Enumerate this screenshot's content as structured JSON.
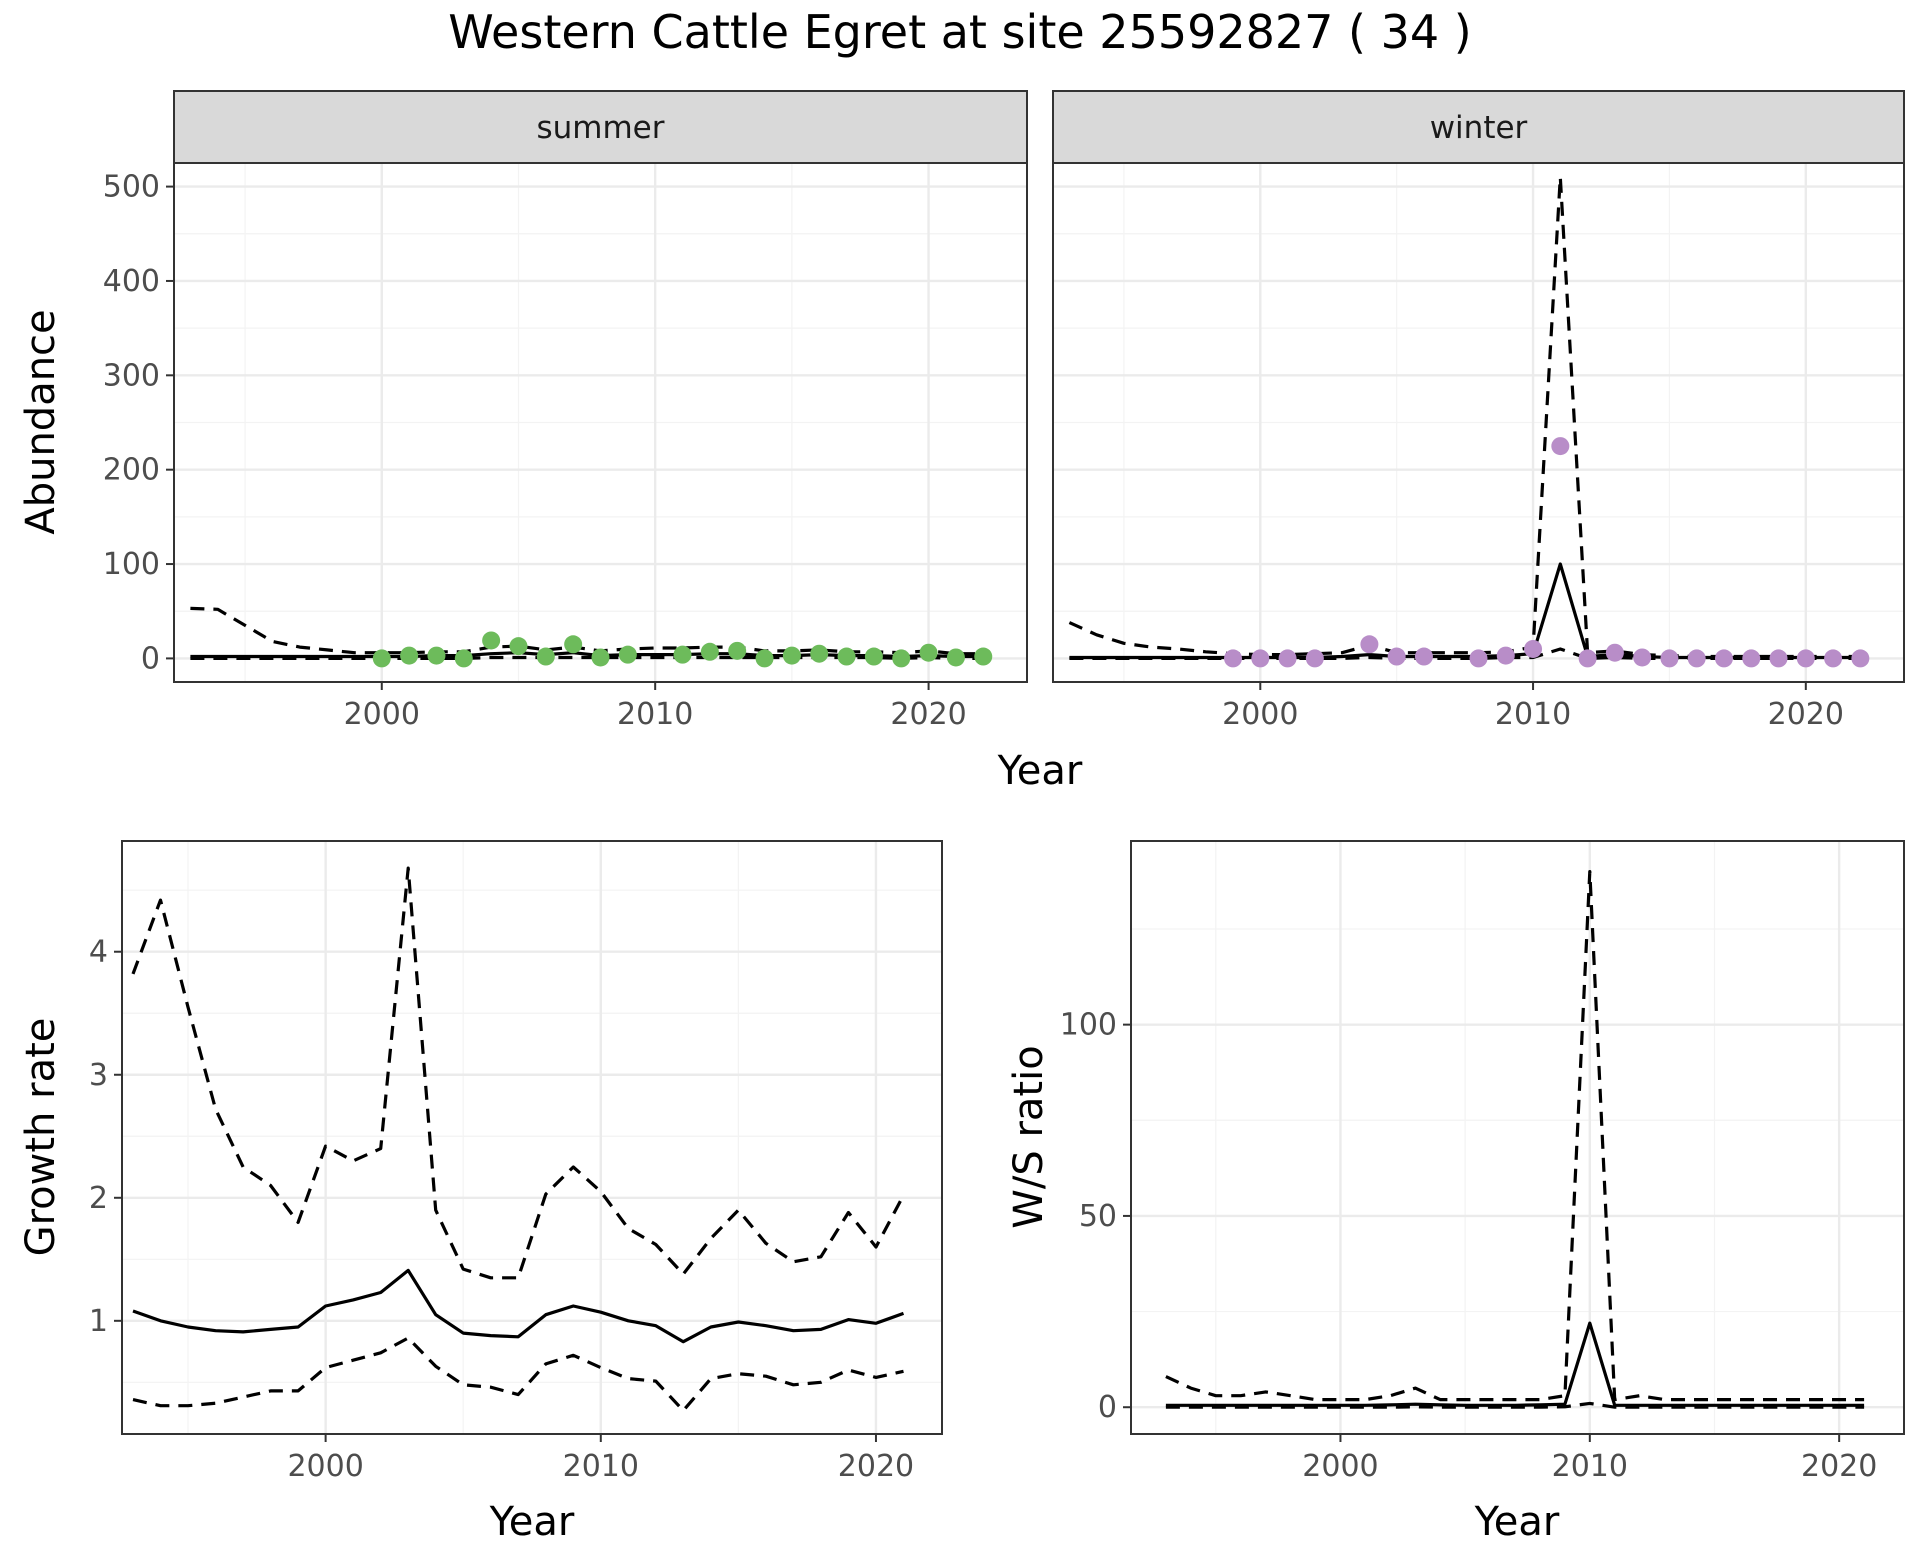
{
  "title": "Western Cattle Egret at site 25592827 ( 34 )",
  "colors": {
    "summer_points": "#6dbb5b",
    "winter_points": "#b88dc8",
    "lines": "#000000"
  },
  "chart_data": [
    {
      "id": "abundance-summer",
      "type": "line",
      "strip": "summer",
      "ylabel": "Abundance",
      "xlim": [
        1992.4,
        2023.6
      ],
      "ylim": [
        -25,
        525
      ],
      "x_ticks": [
        2000,
        2010,
        2020
      ],
      "y_ticks": [
        0,
        100,
        200,
        300,
        400,
        500
      ],
      "lines": [
        {
          "role": "estimate",
          "x": [
            1993,
            1994,
            1995,
            1996,
            1997,
            1998,
            1999,
            2000,
            2001,
            2002,
            2003,
            2004,
            2005,
            2006,
            2007,
            2008,
            2009,
            2010,
            2011,
            2012,
            2013,
            2014,
            2015,
            2016,
            2017,
            2018,
            2019,
            2020,
            2021,
            2022
          ],
          "y": [
            2,
            2,
            2,
            2,
            2,
            2,
            2,
            2,
            2,
            3,
            3,
            5,
            6,
            4,
            6,
            3,
            4,
            4,
            4,
            5,
            5,
            3,
            3,
            4,
            3,
            3,
            2,
            3,
            2,
            2
          ]
        },
        {
          "role": "upper",
          "x": [
            1993,
            1994,
            1995,
            1996,
            1997,
            1998,
            1999,
            2000,
            2001,
            2002,
            2003,
            2004,
            2005,
            2006,
            2007,
            2008,
            2009,
            2010,
            2011,
            2012,
            2013,
            2014,
            2015,
            2016,
            2017,
            2018,
            2019,
            2020,
            2021,
            2022
          ],
          "y": [
            53,
            52,
            35,
            18,
            12,
            9,
            6,
            6,
            6,
            7,
            7,
            12,
            13,
            9,
            12,
            8,
            10,
            11,
            11,
            12,
            12,
            8,
            8,
            9,
            7,
            7,
            6,
            8,
            5,
            5
          ]
        },
        {
          "role": "lower",
          "x": [
            1993,
            1994,
            1995,
            1996,
            1997,
            1998,
            1999,
            2000,
            2001,
            2002,
            2003,
            2004,
            2005,
            2006,
            2007,
            2008,
            2009,
            2010,
            2011,
            2012,
            2013,
            2014,
            2015,
            2016,
            2017,
            2018,
            2019,
            2020,
            2021,
            2022
          ],
          "y": [
            0,
            0,
            0,
            0,
            0,
            0,
            0,
            0,
            0,
            0,
            0,
            1,
            1,
            1,
            1,
            1,
            1,
            1,
            1,
            1,
            1,
            1,
            1,
            1,
            1,
            1,
            0,
            1,
            0,
            0
          ]
        }
      ],
      "points": {
        "x": [
          2000,
          2001,
          2002,
          2003,
          2004,
          2005,
          2006,
          2007,
          2008,
          2009,
          2011,
          2012,
          2013,
          2014,
          2015,
          2016,
          2017,
          2018,
          2019,
          2020,
          2021,
          2022
        ],
        "y": [
          0,
          3,
          3,
          0,
          19,
          13,
          2,
          15,
          1,
          4,
          4,
          7,
          8,
          0,
          3,
          5,
          2,
          2,
          0,
          6,
          1,
          2
        ]
      }
    },
    {
      "id": "abundance-winter",
      "type": "line",
      "strip": "winter",
      "ylabel": "",
      "xlim": [
        1992.4,
        2023.6
      ],
      "ylim": [
        -25,
        525
      ],
      "x_ticks": [
        2000,
        2010,
        2020
      ],
      "y_ticks": [
        0,
        100,
        200,
        300,
        400,
        500
      ],
      "lines": [
        {
          "role": "estimate",
          "x": [
            1993,
            1994,
            1995,
            1996,
            1997,
            1998,
            1999,
            2000,
            2001,
            2002,
            2003,
            2004,
            2005,
            2006,
            2007,
            2008,
            2009,
            2010,
            2011,
            2012,
            2013,
            2014,
            2015,
            2016,
            2017,
            2018,
            2019,
            2020,
            2021,
            2022
          ],
          "y": [
            1,
            1,
            1,
            1,
            1,
            1,
            1,
            1,
            1,
            1,
            2,
            4,
            2,
            2,
            2,
            2,
            3,
            5,
            100,
            2,
            4,
            2,
            1,
            1,
            1,
            1,
            1,
            1,
            1,
            1
          ]
        },
        {
          "role": "upper",
          "x": [
            1993,
            1994,
            1995,
            1996,
            1997,
            1998,
            1999,
            2000,
            2001,
            2002,
            2003,
            2004,
            2005,
            2006,
            2007,
            2008,
            2009,
            2010,
            2011,
            2012,
            2013,
            2014,
            2015,
            2016,
            2017,
            2018,
            2019,
            2020,
            2021,
            2022
          ],
          "y": [
            38,
            25,
            16,
            12,
            10,
            7,
            5,
            4,
            4,
            5,
            6,
            14,
            6,
            6,
            6,
            6,
            7,
            12,
            510,
            6,
            8,
            4,
            3,
            2,
            2,
            2,
            2,
            2,
            2,
            2
          ]
        },
        {
          "role": "lower",
          "x": [
            1993,
            1994,
            1995,
            1996,
            1997,
            1998,
            1999,
            2000,
            2001,
            2002,
            2003,
            2004,
            2005,
            2006,
            2007,
            2008,
            2009,
            2010,
            2011,
            2012,
            2013,
            2014,
            2015,
            2016,
            2017,
            2018,
            2019,
            2020,
            2021,
            2022
          ],
          "y": [
            0,
            0,
            0,
            0,
            0,
            0,
            0,
            0,
            0,
            0,
            0,
            1,
            0,
            0,
            0,
            0,
            1,
            1,
            10,
            0,
            1,
            0,
            0,
            0,
            0,
            0,
            0,
            0,
            0,
            0
          ]
        }
      ],
      "points": {
        "x": [
          1999,
          2000,
          2001,
          2002,
          2004,
          2005,
          2006,
          2008,
          2009,
          2010,
          2011,
          2012,
          2013,
          2014,
          2015,
          2016,
          2017,
          2018,
          2019,
          2020,
          2021,
          2022
        ],
        "y": [
          0,
          0,
          0,
          0,
          15,
          2,
          2,
          0,
          3,
          10,
          225,
          0,
          6,
          1,
          0,
          0,
          0,
          0,
          0,
          0,
          0,
          0
        ]
      }
    },
    {
      "id": "growth-rate",
      "type": "line",
      "xlabel": "Year",
      "ylabel": "Growth rate",
      "xlim": [
        1992.6,
        2022.4
      ],
      "ylim": [
        0.08,
        4.9
      ],
      "x_ticks": [
        2000,
        2010,
        2020
      ],
      "y_ticks": [
        1,
        2,
        3,
        4
      ],
      "lines": [
        {
          "role": "estimate",
          "x": [
            1993,
            1994,
            1995,
            1996,
            1997,
            1998,
            1999,
            2000,
            2001,
            2002,
            2003,
            2004,
            2005,
            2006,
            2007,
            2008,
            2009,
            2010,
            2011,
            2012,
            2013,
            2014,
            2015,
            2016,
            2017,
            2018,
            2019,
            2020,
            2021
          ],
          "y": [
            1.08,
            1.0,
            0.95,
            0.92,
            0.91,
            0.93,
            0.95,
            1.12,
            1.17,
            1.23,
            1.41,
            1.05,
            0.9,
            0.88,
            0.87,
            1.05,
            1.12,
            1.07,
            1.0,
            0.96,
            0.83,
            0.95,
            0.99,
            0.96,
            0.92,
            0.93,
            1.01,
            0.98,
            1.06
          ]
        },
        {
          "role": "upper",
          "x": [
            1993,
            1994,
            1995,
            1996,
            1997,
            1998,
            1999,
            2000,
            2001,
            2002,
            2003,
            2004,
            2005,
            2006,
            2007,
            2008,
            2009,
            2010,
            2011,
            2012,
            2013,
            2014,
            2015,
            2016,
            2017,
            2018,
            2019,
            2020,
            2021
          ],
          "y": [
            3.82,
            4.42,
            3.55,
            2.72,
            2.25,
            2.1,
            1.8,
            2.42,
            2.3,
            2.4,
            4.68,
            1.9,
            1.42,
            1.35,
            1.35,
            2.03,
            2.25,
            2.05,
            1.75,
            1.62,
            1.38,
            1.67,
            1.9,
            1.63,
            1.48,
            1.52,
            1.88,
            1.6,
            2.02
          ]
        },
        {
          "role": "lower",
          "x": [
            1993,
            1994,
            1995,
            1996,
            1997,
            1998,
            1999,
            2000,
            2001,
            2002,
            2003,
            2004,
            2005,
            2006,
            2007,
            2008,
            2009,
            2010,
            2011,
            2012,
            2013,
            2014,
            2015,
            2016,
            2017,
            2018,
            2019,
            2020,
            2021
          ],
          "y": [
            0.36,
            0.31,
            0.31,
            0.33,
            0.38,
            0.43,
            0.43,
            0.62,
            0.68,
            0.74,
            0.86,
            0.63,
            0.48,
            0.46,
            0.4,
            0.65,
            0.72,
            0.62,
            0.53,
            0.51,
            0.27,
            0.53,
            0.57,
            0.55,
            0.48,
            0.5,
            0.6,
            0.54,
            0.59
          ]
        }
      ]
    },
    {
      "id": "ws-ratio",
      "type": "line",
      "xlabel": "Year",
      "ylabel": "W/S ratio",
      "xlim": [
        1991.6,
        2022.6
      ],
      "ylim": [
        -7,
        148
      ],
      "x_ticks": [
        2000,
        2010,
        2020
      ],
      "y_ticks": [
        0,
        50,
        100
      ],
      "lines": [
        {
          "role": "estimate",
          "x": [
            1993,
            1994,
            1995,
            1996,
            1997,
            1998,
            1999,
            2000,
            2001,
            2002,
            2003,
            2004,
            2005,
            2006,
            2007,
            2008,
            2009,
            2010,
            2011,
            2012,
            2013,
            2014,
            2015,
            2016,
            2017,
            2018,
            2019,
            2020,
            2021
          ],
          "y": [
            0.5,
            0.5,
            0.5,
            0.5,
            0.5,
            0.5,
            0.5,
            0.5,
            0.5,
            0.6,
            0.8,
            0.6,
            0.5,
            0.5,
            0.5,
            0.6,
            0.8,
            22,
            0.5,
            0.5,
            0.5,
            0.5,
            0.5,
            0.5,
            0.5,
            0.5,
            0.5,
            0.5,
            0.5
          ]
        },
        {
          "role": "upper",
          "x": [
            1993,
            1994,
            1995,
            1996,
            1997,
            1998,
            1999,
            2000,
            2001,
            2002,
            2003,
            2004,
            2005,
            2006,
            2007,
            2008,
            2009,
            2010,
            2011,
            2012,
            2013,
            2014,
            2015,
            2016,
            2017,
            2018,
            2019,
            2020,
            2021
          ],
          "y": [
            8,
            5,
            3,
            3,
            4,
            3,
            2,
            2,
            2,
            3,
            5,
            2,
            2,
            2,
            2,
            2,
            3,
            140,
            2,
            3,
            2,
            2,
            2,
            2,
            2,
            2,
            2,
            2,
            2
          ]
        },
        {
          "role": "lower",
          "x": [
            1993,
            1994,
            1995,
            1996,
            1997,
            1998,
            1999,
            2000,
            2001,
            2002,
            2003,
            2004,
            2005,
            2006,
            2007,
            2008,
            2009,
            2010,
            2011,
            2012,
            2013,
            2014,
            2015,
            2016,
            2017,
            2018,
            2019,
            2020,
            2021
          ],
          "y": [
            0,
            0,
            0,
            0,
            0,
            0,
            0,
            0,
            0,
            0,
            0.1,
            0,
            0,
            0,
            0,
            0,
            0.1,
            1,
            0,
            0,
            0,
            0,
            0,
            0,
            0,
            0,
            0,
            0,
            0
          ]
        }
      ]
    }
  ],
  "shared_xlabel_top": "Year"
}
